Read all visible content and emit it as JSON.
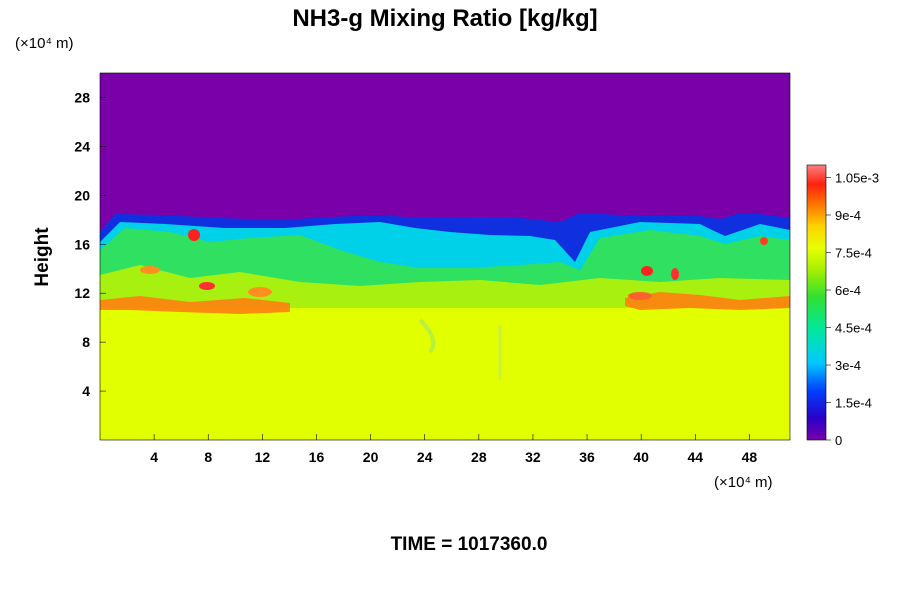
{
  "chart_data": {
    "type": "heatmap",
    "title": "NH3-g Mixing Ratio [kg/kg]",
    "ylabel": "Height",
    "x_unit_label": "(×10⁴ m)",
    "y_unit_label": "(×10⁴ m)",
    "footer": "TIME = 1017360.0",
    "x_ticks": [
      "4",
      "8",
      "12",
      "16",
      "20",
      "24",
      "28",
      "32",
      "36",
      "40",
      "44",
      "48"
    ],
    "y_ticks": [
      "4",
      "8",
      "12",
      "16",
      "20",
      "24",
      "28"
    ],
    "xlim": [
      0,
      51
    ],
    "ylim": [
      0,
      30
    ],
    "colorbar": {
      "range": [
        0,
        0.0011
      ],
      "tick_labels": [
        "0",
        "1.5e-4",
        "3e-4",
        "4.5e-4",
        "6e-4",
        "7.5e-4",
        "9e-4",
        "1.05e-3"
      ],
      "tick_values": [
        0,
        0.00015,
        0.0003,
        0.00045,
        0.0006,
        0.00075,
        0.0009,
        0.00105
      ]
    },
    "field_layers": [
      {
        "region": "upper (above ~18)",
        "value": 0
      },
      {
        "region": "cloud layer (~10 to ~18)",
        "value_range": [
          0.00015,
          0.00105
        ]
      },
      {
        "region": "lower (below ~10)",
        "value": 0.00075
      }
    ]
  }
}
